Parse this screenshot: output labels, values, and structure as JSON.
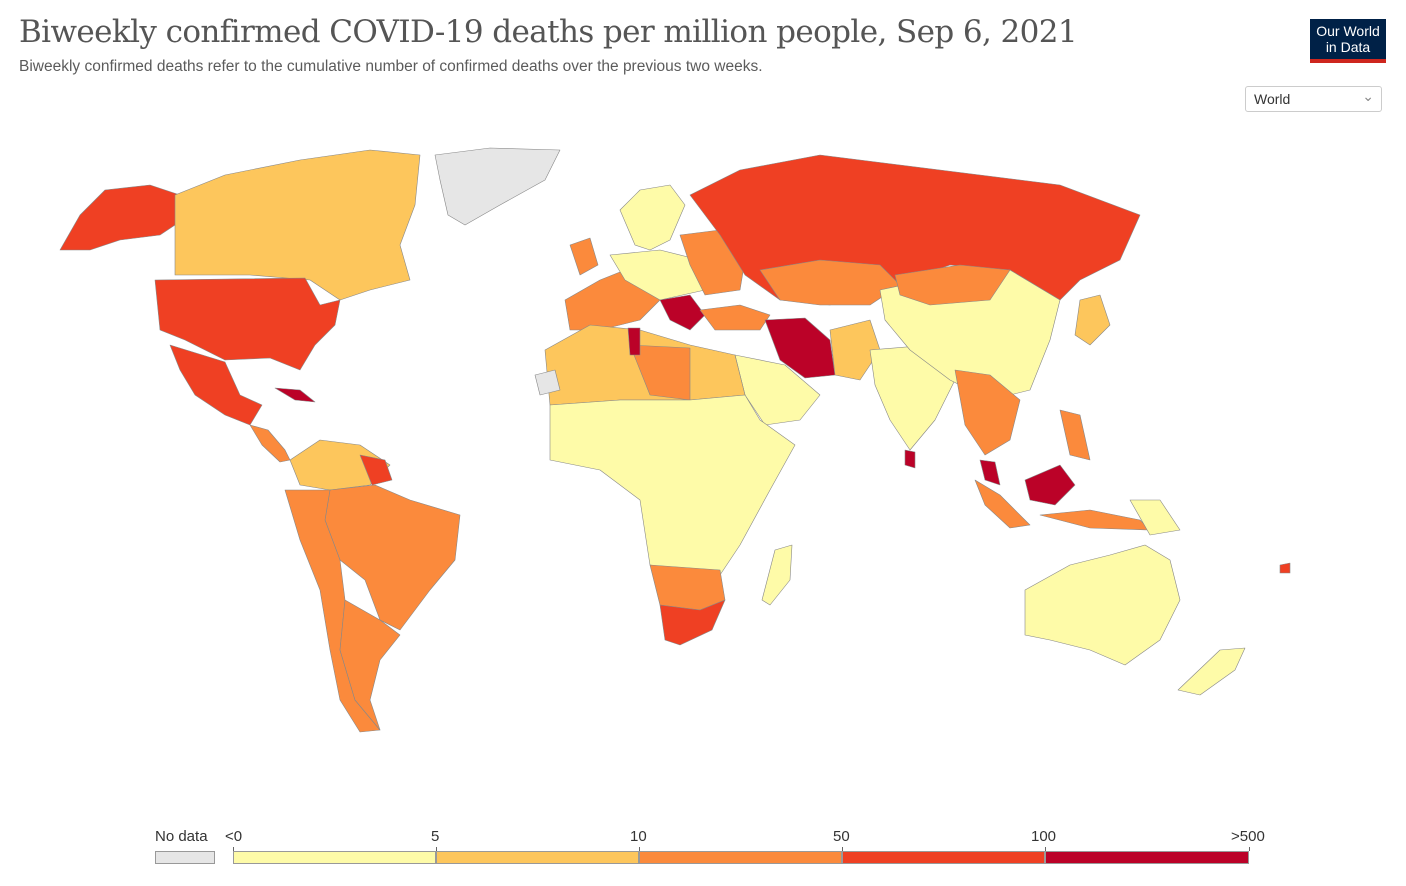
{
  "header": {
    "title": "Biweekly confirmed COVID-19 deaths per million people, Sep 6, 2021",
    "subtitle": "Biweekly confirmed deaths refer to the cumulative number of confirmed deaths over the previous two weeks.",
    "logo_line1": "Our World",
    "logo_line2": "in Data"
  },
  "region_select": {
    "value": "World"
  },
  "legend": {
    "no_data_label": "No data",
    "bins": [
      {
        "from": "<0",
        "to": "5",
        "color": "#fefba8"
      },
      {
        "from": "5",
        "to": "10",
        "color": "#fdc65c"
      },
      {
        "from": "10",
        "to": "50",
        "color": "#fb8a3c"
      },
      {
        "from": "50",
        "to": "100",
        "color": "#ef4023"
      },
      {
        "from": "100",
        "to": ">500",
        "color": "#bb0228"
      }
    ],
    "no_data_color": "#e6e6e6"
  },
  "colors": {
    "no_data": "#e6e6e6",
    "bin_0_5": "#fefba8",
    "bin_5_10": "#fdc65c",
    "bin_10_50": "#fb8a3c",
    "bin_50_100": "#ef4023",
    "bin_100_500": "#bb0228"
  }
}
